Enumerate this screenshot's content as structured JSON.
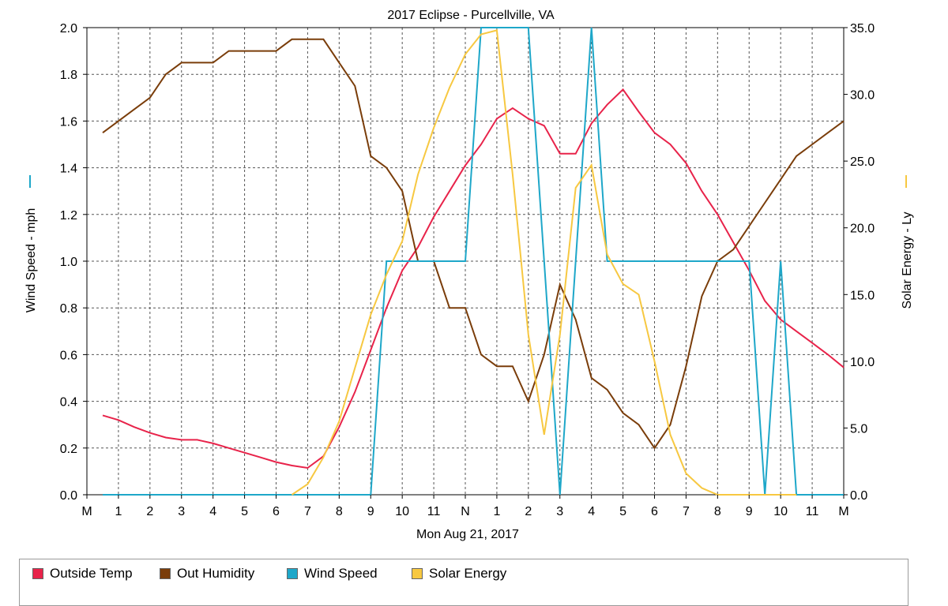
{
  "chart_data": {
    "type": "line",
    "title": "2017 Eclipse - Purcellville, VA",
    "xlabel": "Mon Aug 21, 2017",
    "ylabel_left": "Wind Speed - mph",
    "ylabel_right": "Solar Energy - Ly",
    "x_tick_labels": [
      "M",
      "1",
      "2",
      "3",
      "4",
      "5",
      "6",
      "7",
      "8",
      "9",
      "10",
      "11",
      "N",
      "1",
      "2",
      "3",
      "4",
      "5",
      "6",
      "7",
      "8",
      "9",
      "10",
      "11",
      "M"
    ],
    "xlim": [
      0,
      24
    ],
    "ylim_left": [
      0,
      2.0
    ],
    "ylim_right": [
      0,
      35.0
    ],
    "y_ticks_left": [
      "0.0",
      "0.2",
      "0.4",
      "0.6",
      "0.8",
      "1.0",
      "1.2",
      "1.4",
      "1.6",
      "1.8",
      "2.0"
    ],
    "y_ticks_right": [
      "0.0",
      "5.0",
      "10.0",
      "15.0",
      "20.0",
      "25.0",
      "30.0",
      "35.0"
    ],
    "grid": true,
    "legend_position": "bottom",
    "series": [
      {
        "name": "Outside Temp",
        "color": "#e8234a",
        "axis": "left",
        "x": [
          0.5,
          1,
          1.5,
          2,
          2.5,
          3,
          3.5,
          4,
          4.5,
          5,
          5.5,
          6,
          6.5,
          7,
          7.5,
          8,
          8.5,
          9,
          9.5,
          10,
          10.5,
          11,
          11.5,
          12,
          12.5,
          13,
          13.5,
          14,
          14.5,
          15,
          15.5,
          16,
          16.5,
          17,
          17.5,
          18,
          18.5,
          19,
          19.5,
          20,
          20.5,
          21,
          21.5,
          22,
          22.5,
          23,
          23.5,
          24
        ],
        "values": [
          0.34,
          0.32,
          0.29,
          0.265,
          0.245,
          0.235,
          0.235,
          0.22,
          0.2,
          0.18,
          0.16,
          0.14,
          0.125,
          0.115,
          0.165,
          0.29,
          0.44,
          0.62,
          0.8,
          0.96,
          1.06,
          1.19,
          1.3,
          1.41,
          1.5,
          1.61,
          1.655,
          1.61,
          1.58,
          1.46,
          1.46,
          1.59,
          1.67,
          1.735,
          1.64,
          1.55,
          1.5,
          1.42,
          1.3,
          1.2,
          1.08,
          0.96,
          0.83,
          0.75,
          0.7,
          0.65,
          0.6,
          0.545
        ]
      },
      {
        "name": "Out Humidity",
        "color": "#7a3d0a",
        "axis": "left",
        "x": [
          0.5,
          1,
          1.5,
          2,
          2.5,
          3,
          3.5,
          4,
          4.5,
          5,
          5.5,
          6,
          6.5,
          7,
          7.5,
          8,
          8.5,
          9,
          9.5,
          10,
          10.5,
          11,
          11.5,
          12,
          12.5,
          13,
          13.5,
          14,
          14.5,
          15,
          15.5,
          16,
          16.5,
          17,
          17.5,
          18,
          18.5,
          19,
          19.5,
          20,
          20.5,
          21,
          21.5,
          22,
          22.5,
          23,
          23.5,
          24
        ],
        "values": [
          1.55,
          1.6,
          1.65,
          1.7,
          1.8,
          1.85,
          1.85,
          1.85,
          1.9,
          1.9,
          1.9,
          1.9,
          1.95,
          1.95,
          1.95,
          1.85,
          1.75,
          1.45,
          1.4,
          1.3,
          1.0,
          1.0,
          0.8,
          0.8,
          0.6,
          0.55,
          0.55,
          0.4,
          0.6,
          0.9,
          0.75,
          0.5,
          0.45,
          0.35,
          0.3,
          0.2,
          0.3,
          0.55,
          0.85,
          1.0,
          1.05,
          1.15,
          1.25,
          1.35,
          1.45,
          1.5,
          1.55,
          1.6
        ]
      },
      {
        "name": "Wind Speed",
        "color": "#1ea7c9",
        "axis": "left",
        "x": [
          0.5,
          9,
          9.5,
          10,
          10.5,
          11,
          11.5,
          12,
          12.5,
          13,
          13.5,
          14,
          14.5,
          15,
          15.5,
          16,
          16.5,
          17,
          17.5,
          18,
          18.5,
          19,
          19.5,
          20,
          20.5,
          21,
          21.5,
          22,
          22.5,
          23,
          23.5,
          24
        ],
        "values": [
          0,
          0,
          1.0,
          1.0,
          1.0,
          1.0,
          1.0,
          1.0,
          2.0,
          2.0,
          2.0,
          2.0,
          1.0,
          0,
          1.0,
          2.0,
          1.0,
          1.0,
          1.0,
          1.0,
          1.0,
          1.0,
          1.0,
          1.0,
          1.0,
          1.0,
          0,
          1.0,
          0,
          0,
          0,
          0
        ]
      },
      {
        "name": "Solar Energy",
        "color": "#f7c841",
        "axis": "right",
        "x": [
          6.5,
          7,
          7.5,
          8,
          8.5,
          9,
          9.5,
          10,
          10.5,
          11,
          11.5,
          12,
          12.5,
          13,
          13.5,
          14,
          14.5,
          15,
          15.5,
          16,
          16.5,
          17,
          17.5,
          18,
          18.5,
          19,
          19.5,
          20,
          20.5,
          21,
          21.5,
          22,
          22.5
        ],
        "values": [
          0,
          0.8,
          2.8,
          5.5,
          9.5,
          13.5,
          16.5,
          19.0,
          24.0,
          27.5,
          30.5,
          33.0,
          34.5,
          34.8,
          24.0,
          12.0,
          4.5,
          12.0,
          23.0,
          24.7,
          18.0,
          15.8,
          15.0,
          10.0,
          4.5,
          1.6,
          0.5,
          0,
          0,
          0,
          0,
          0,
          0
        ]
      }
    ]
  }
}
